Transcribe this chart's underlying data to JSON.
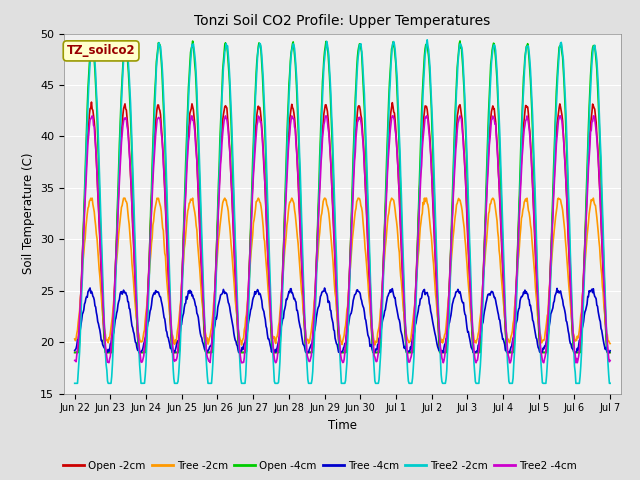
{
  "title": "Tonzi Soil CO2 Profile: Upper Temperatures",
  "ylabel": "Soil Temperature (C)",
  "xlabel": "Time",
  "ylim": [
    15,
    50
  ],
  "legend_label": "TZ_soilco2",
  "series_order": [
    "Open -2cm",
    "Tree -2cm",
    "Open -4cm",
    "Tree -4cm",
    "Tree2 -2cm",
    "Tree2 -4cm"
  ],
  "series": {
    "Open -2cm": {
      "color": "#cc0000",
      "lw": 1.2
    },
    "Tree -2cm": {
      "color": "#ff9900",
      "lw": 1.2
    },
    "Open -4cm": {
      "color": "#00cc00",
      "lw": 1.2
    },
    "Tree -4cm": {
      "color": "#0000cc",
      "lw": 1.2
    },
    "Tree2 -2cm": {
      "color": "#00cccc",
      "lw": 1.2
    },
    "Tree2 -4cm": {
      "color": "#cc00cc",
      "lw": 1.2
    }
  },
  "xtick_labels": [
    "Jun 22",
    "Jun 23",
    "Jun 24",
    "Jun 25",
    "Jun 26",
    "Jun 27",
    "Jun 28",
    "Jun 29",
    "Jun 30",
    "Jul 1",
    "Jul 2",
    "Jul 3",
    "Jul 4",
    "Jul 5",
    "Jul 6",
    "Jul 7"
  ],
  "ytick_labels": [
    15,
    20,
    25,
    30,
    35,
    40,
    45,
    50
  ],
  "bg_color": "#e0e0e0",
  "plot_bg": "#f0f0f0",
  "grid_color": "#ffffff",
  "n_days": 16,
  "pts_per_day": 48,
  "params": {
    "Open -2cm": {
      "base": 30,
      "amp": 13,
      "phase": 0.0,
      "min": 19,
      "max": 44
    },
    "Tree -2cm": {
      "base": 27,
      "amp": 7,
      "phase": 0.1,
      "min": 19,
      "max": 34
    },
    "Open -4cm": {
      "base": 32,
      "amp": 17,
      "phase": -0.1,
      "min": 19,
      "max": 50
    },
    "Tree -4cm": {
      "base": 22,
      "amp": 3,
      "phase": 0.3,
      "min": 19,
      "max": 26
    },
    "Tree2 -2cm": {
      "base": 32,
      "amp": 17,
      "phase": -0.2,
      "min": 16,
      "max": 50
    },
    "Tree2 -4cm": {
      "base": 30,
      "amp": 12,
      "phase": -0.05,
      "min": 18,
      "max": 42
    }
  }
}
